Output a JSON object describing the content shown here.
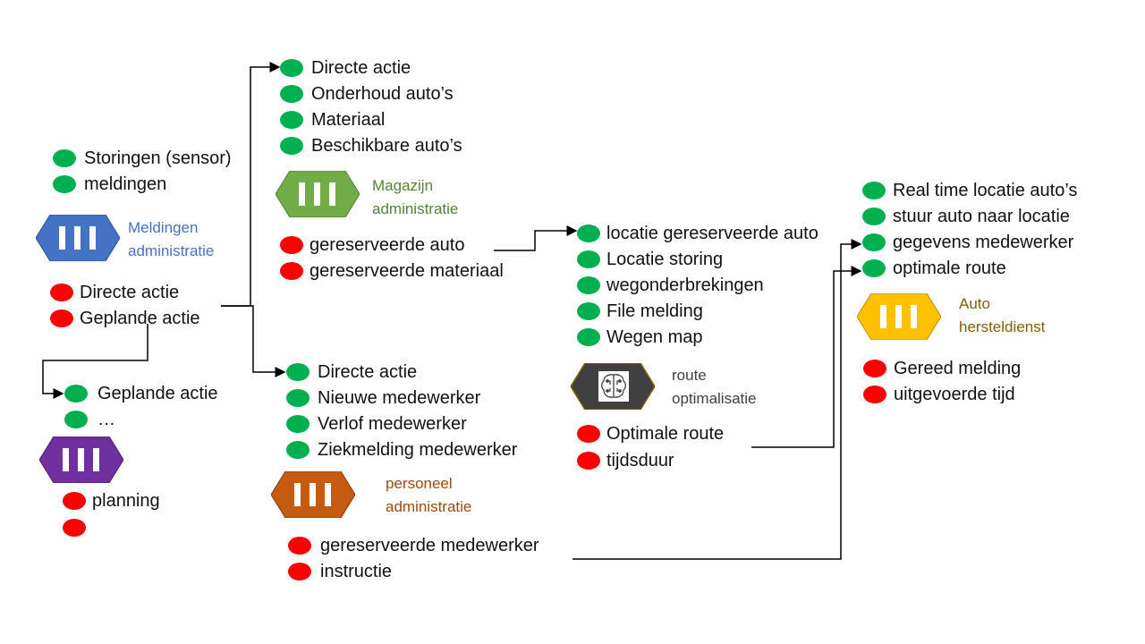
{
  "colors": {
    "input_dot": "#00b050",
    "output_dot": "#ff0000",
    "meldingen": "#4472c4",
    "magazijn": "#70ad47",
    "personeel": "#c55a11",
    "planning": "#7030a0",
    "route": "#404040",
    "auto": "#ffc000"
  },
  "meldingen": {
    "inputs": [
      "Storingen (sensor)",
      "meldingen"
    ],
    "name": [
      "Meldingen",
      "administratie"
    ],
    "outputs": [
      "Directe actie",
      "Geplande actie"
    ]
  },
  "planning": {
    "inputs": [
      "Geplande actie",
      "…"
    ],
    "outputs": [
      "planning",
      ""
    ]
  },
  "magazijn": {
    "inputs": [
      "Directe actie",
      "Onderhoud auto’s",
      "Materiaal",
      "Beschikbare auto’s"
    ],
    "name": [
      "Magazijn",
      "administratie"
    ],
    "outputs": [
      "gereserveerde auto",
      "gereserveerde materiaal"
    ]
  },
  "personeel": {
    "inputs": [
      "Directe actie",
      "Nieuwe medewerker",
      "Verlof medewerker",
      "Ziekmelding medewerker"
    ],
    "name": [
      "personeel",
      "administratie"
    ],
    "outputs": [
      "gereserveerde medewerker",
      "instructie"
    ]
  },
  "route": {
    "inputs": [
      "locatie gereserveerde auto",
      "Locatie storing",
      "wegonderbrekingen",
      "File melding",
      "Wegen map"
    ],
    "name": [
      "route",
      "optimalisatie"
    ],
    "outputs": [
      "Optimale route",
      "tijdsduur"
    ],
    "icon": "brain-circuit-icon"
  },
  "auto": {
    "inputs": [
      "Real time locatie auto’s",
      "stuur auto naar locatie",
      "gegevens medewerker",
      "optimale route"
    ],
    "name": [
      "Auto",
      "hersteldienst"
    ],
    "outputs": [
      "Gereed melding",
      "uitgevoerde tijd"
    ]
  }
}
